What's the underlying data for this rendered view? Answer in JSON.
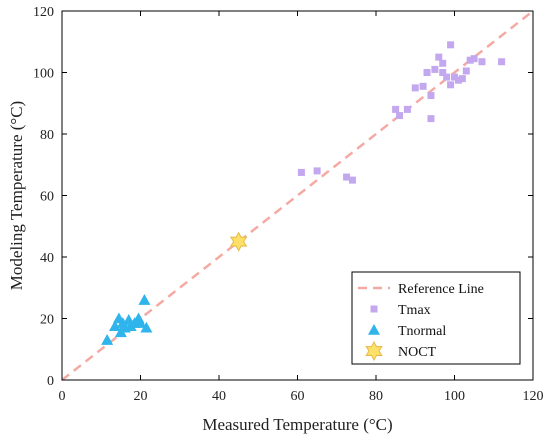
{
  "chart_data": {
    "type": "scatter",
    "xlabel": "Measured Temperature (°C)",
    "ylabel": "Modeling Temperature (°C)",
    "xlim": [
      0,
      120
    ],
    "ylim": [
      0,
      120
    ],
    "xticks": [
      0,
      20,
      40,
      60,
      80,
      100,
      120
    ],
    "yticks": [
      0,
      20,
      40,
      60,
      80,
      100,
      120
    ],
    "grid": false,
    "legend_position": "bottom-right",
    "reference_line": {
      "name": "Reference Line",
      "from": [
        0,
        0
      ],
      "to": [
        120,
        120
      ],
      "color": "#f4a9a2",
      "style": "dashed"
    },
    "series": [
      {
        "name": "Tmax",
        "marker": "square",
        "color": "#c3a8ef",
        "points": [
          [
            61,
            67.5
          ],
          [
            65,
            68
          ],
          [
            72.5,
            66
          ],
          [
            74,
            65
          ],
          [
            85,
            88
          ],
          [
            86,
            86
          ],
          [
            88,
            88
          ],
          [
            90,
            95
          ],
          [
            92,
            95.5
          ],
          [
            93,
            100
          ],
          [
            94,
            92.5
          ],
          [
            94,
            85
          ],
          [
            95,
            101
          ],
          [
            96,
            105
          ],
          [
            97,
            103
          ],
          [
            97,
            100
          ],
          [
            98,
            98.5
          ],
          [
            99,
            109
          ],
          [
            99,
            96
          ],
          [
            100,
            98.5
          ],
          [
            101,
            97.5
          ],
          [
            102,
            98
          ],
          [
            103,
            100.5
          ],
          [
            104,
            104
          ],
          [
            105,
            104.5
          ],
          [
            107,
            103.5
          ],
          [
            112,
            103.5
          ]
        ]
      },
      {
        "name": "Tnormal",
        "marker": "triangle",
        "color": "#2fb4ec",
        "points": [
          [
            11.5,
            13
          ],
          [
            13.5,
            17.5
          ],
          [
            14.5,
            20
          ],
          [
            15,
            15.5
          ],
          [
            15.5,
            18.5
          ],
          [
            16,
            17
          ],
          [
            17,
            19.5
          ],
          [
            17.5,
            17.5
          ],
          [
            18.5,
            18.5
          ],
          [
            19.5,
            20
          ],
          [
            20,
            18.5
          ],
          [
            21,
            26
          ],
          [
            21.5,
            17
          ]
        ]
      },
      {
        "name": "NOCT",
        "marker": "hexagram",
        "color": "#fde068",
        "points": [
          [
            45,
            45
          ]
        ]
      }
    ]
  }
}
